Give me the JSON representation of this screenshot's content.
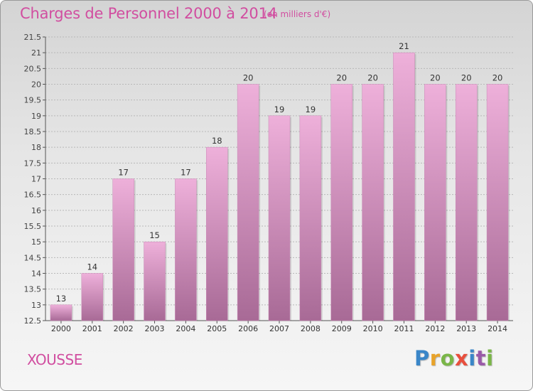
{
  "header": {
    "title": "Charges de Personnel 2000 à 2014",
    "subtitle": "(en milliers d'€)"
  },
  "footer": {
    "commune": "XOUSSE",
    "brand_letters": [
      "P",
      "r",
      "o",
      "x",
      "i",
      "t",
      "i"
    ]
  },
  "colors": {
    "title": "#d14ea0",
    "bar_top": "#eeb0da",
    "bar_bottom": "#a86a96",
    "grid": "#b8b8b8"
  },
  "chart_data": {
    "type": "bar",
    "categories": [
      "2000",
      "2001",
      "2002",
      "2003",
      "2004",
      "2005",
      "2006",
      "2007",
      "2008",
      "2009",
      "2010",
      "2011",
      "2012",
      "2013",
      "2014"
    ],
    "values": [
      13,
      14,
      17,
      15,
      17,
      18,
      20,
      19,
      19,
      20,
      20,
      21,
      20,
      20,
      20
    ],
    "ylim": [
      12.5,
      21.5
    ],
    "yticks": [
      12.5,
      13,
      13.5,
      14,
      14.5,
      15,
      15.5,
      16,
      16.5,
      17,
      17.5,
      18,
      18.5,
      19,
      19.5,
      20,
      20.5,
      21,
      21.5
    ],
    "title": "Charges de Personnel 2000 à 2014",
    "xlabel": "",
    "ylabel": "",
    "grid": true
  }
}
